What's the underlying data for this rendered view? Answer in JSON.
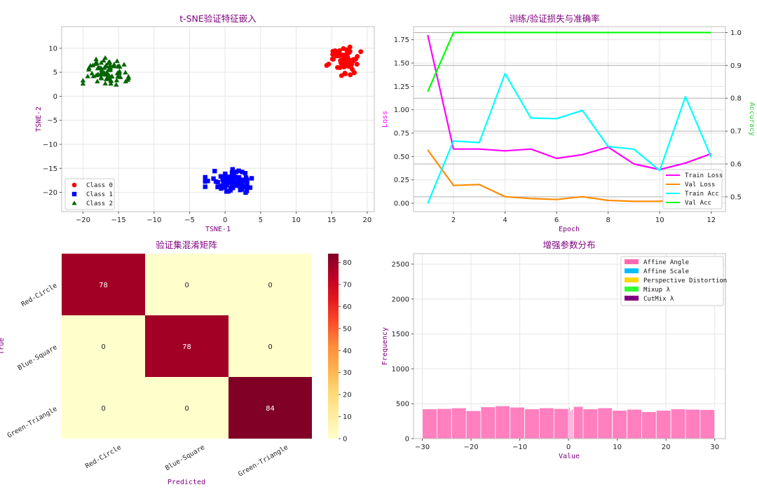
{
  "chart_data": [
    {
      "type": "scatter",
      "title": "t-SNE验证特征嵌入",
      "xlabel": "TSNE-1",
      "ylabel": "TSNE-2",
      "xlim": [
        -23,
        21
      ],
      "ylim": [
        -24,
        14.5
      ],
      "xticks": [
        -20,
        -15,
        -10,
        -5,
        0,
        5,
        10,
        15,
        20
      ],
      "yticks": [
        -20,
        -15,
        -10,
        -5,
        0,
        5,
        10
      ],
      "legend": "lower-left",
      "series": [
        {
          "name": "Class 0",
          "marker": "circle",
          "color": "#ff0000",
          "center": [
            16.5,
            7.5
          ],
          "spread": [
            2.6,
            3.2
          ],
          "count": 78
        },
        {
          "name": "Class 1",
          "marker": "square",
          "color": "#0000ff",
          "center": [
            1.0,
            -17.8
          ],
          "spread": [
            3.8,
            2.6
          ],
          "count": 78
        },
        {
          "name": "Class 2",
          "marker": "triangle",
          "color": "#006400",
          "center": [
            -16.8,
            5.0
          ],
          "spread": [
            3.2,
            3.2
          ],
          "count": 84
        }
      ]
    },
    {
      "type": "line",
      "title": "训练/验证损失与准确率",
      "xlabel": "Epoch",
      "ylabel": "Loss",
      "y2label": "Accuracy",
      "x": [
        1,
        2,
        3,
        4,
        5,
        6,
        7,
        8,
        9,
        10,
        11,
        12
      ],
      "xticks": [
        2,
        4,
        6,
        8,
        10,
        12
      ],
      "xlim": [
        0.45,
        12.55
      ],
      "ylim": [
        -0.09,
        1.89
      ],
      "yticks": [
        0.0,
        0.25,
        0.5,
        0.75,
        1.0,
        1.25,
        1.5,
        1.75
      ],
      "y2lim": [
        0.455,
        1.018
      ],
      "y2ticks": [
        0.5,
        0.6,
        0.7,
        0.8,
        0.9,
        1.0
      ],
      "legend": "lower-right",
      "series": [
        {
          "name": "Train Loss",
          "axis": "left",
          "color": "#ff00ff",
          "values": [
            1.8,
            0.58,
            0.58,
            0.56,
            0.58,
            0.48,
            0.52,
            0.6,
            0.42,
            0.36,
            0.43,
            0.53
          ]
        },
        {
          "name": "Val Loss",
          "axis": "left",
          "color": "#ff8c00",
          "values": [
            0.57,
            0.19,
            0.2,
            0.07,
            0.05,
            0.04,
            0.07,
            0.03,
            0.02,
            0.02,
            0.05,
            0.06
          ]
        },
        {
          "name": "Train Acc",
          "axis": "right",
          "color": "#00ffff",
          "values": [
            0.48,
            0.67,
            0.665,
            0.875,
            0.74,
            0.738,
            0.763,
            0.653,
            0.645,
            0.58,
            0.805,
            0.62
          ]
        },
        {
          "name": "Val Acc",
          "axis": "right",
          "color": "#00ff00",
          "values": [
            0.82,
            1.0,
            1.0,
            1.0,
            1.0,
            1.0,
            1.0,
            1.0,
            1.0,
            1.0,
            1.0,
            1.0
          ]
        }
      ]
    },
    {
      "type": "heatmap",
      "title": "验证集混淆矩阵",
      "xlabel": "Predicted",
      "ylabel": "True",
      "row_labels": [
        "Red-Circle",
        "Blue-Square",
        "Green-Triangle"
      ],
      "col_labels": [
        "Red-Circle",
        "Blue-Square",
        "Green-Triangle"
      ],
      "matrix": [
        [
          78,
          0,
          0
        ],
        [
          0,
          78,
          0
        ],
        [
          0,
          0,
          84
        ]
      ],
      "vmin": 0,
      "vmax": 84,
      "colorbar_ticks": [
        0,
        10,
        20,
        30,
        40,
        50,
        60,
        70,
        80
      ]
    },
    {
      "type": "bar",
      "title": "增强参数分布",
      "xlabel": "Value",
      "ylabel": "Frequency",
      "xlim": [
        -31.8,
        32.2
      ],
      "ylim": [
        0,
        2650
      ],
      "xticks": [
        -30,
        -20,
        -10,
        0,
        10,
        20,
        30
      ],
      "yticks": [
        0,
        500,
        1000,
        1500,
        2000,
        2500
      ],
      "legend": "top-right",
      "legend_entries": [
        {
          "name": "Affine Angle",
          "color": "#ff69b4"
        },
        {
          "name": "Affine Scale",
          "color": "#00bfff"
        },
        {
          "name": "Perspective Distortion",
          "color": "#ffd700"
        },
        {
          "name": "Mixup λ",
          "color": "#32ff32"
        },
        {
          "name": "CutMix λ",
          "color": "#800080"
        }
      ],
      "bins": [
        {
          "start": -30.0,
          "end": -27.0,
          "value": 425
        },
        {
          "start": -27.0,
          "end": -24.0,
          "value": 430
        },
        {
          "start": -24.0,
          "end": -21.0,
          "value": 440
        },
        {
          "start": -21.0,
          "end": -18.0,
          "value": 400
        },
        {
          "start": -18.0,
          "end": -15.0,
          "value": 455
        },
        {
          "start": -15.0,
          "end": -12.0,
          "value": 470
        },
        {
          "start": -12.0,
          "end": -9.0,
          "value": 450
        },
        {
          "start": -9.0,
          "end": -6.0,
          "value": 425
        },
        {
          "start": -6.0,
          "end": -3.0,
          "value": 440
        },
        {
          "start": -3.0,
          "end": 0.0,
          "value": 430
        },
        {
          "start": 0.0,
          "end": 0.3,
          "value": 450
        },
        {
          "start": 0.3,
          "end": 0.6,
          "value": 400
        },
        {
          "start": 0.6,
          "end": 0.9,
          "value": 420
        },
        {
          "start": 1.0,
          "end": 3.0,
          "value": 460
        },
        {
          "start": 3.0,
          "end": 6.0,
          "value": 425
        },
        {
          "start": 6.0,
          "end": 9.0,
          "value": 440
        },
        {
          "start": 9.0,
          "end": 12.0,
          "value": 405
        },
        {
          "start": 12.0,
          "end": 15.0,
          "value": 420
        },
        {
          "start": 15.0,
          "end": 18.0,
          "value": 385
        },
        {
          "start": 18.0,
          "end": 21.0,
          "value": 405
        },
        {
          "start": 21.0,
          "end": 24.0,
          "value": 425
        },
        {
          "start": 24.0,
          "end": 27.0,
          "value": 420
        },
        {
          "start": 27.0,
          "end": 30.0,
          "value": 415
        }
      ]
    }
  ]
}
